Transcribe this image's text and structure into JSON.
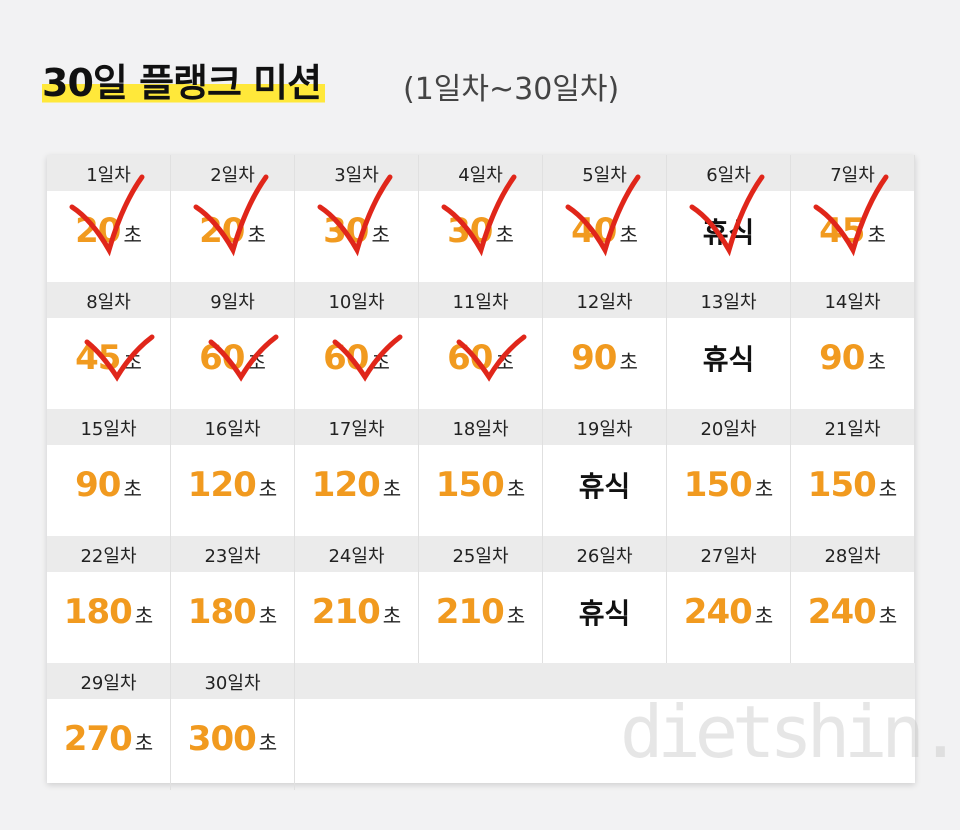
{
  "header": {
    "title": "30일 플랭크 미션",
    "subtitle": "(1일차~30일차)"
  },
  "unit": "초",
  "days": [
    {
      "label": "1일차",
      "value": 20
    },
    {
      "label": "2일차",
      "value": 20
    },
    {
      "label": "3일차",
      "value": 30
    },
    {
      "label": "4일차",
      "value": 30
    },
    {
      "label": "5일차",
      "value": 40
    },
    {
      "label": "6일차",
      "value": "휴식"
    },
    {
      "label": "7일차",
      "value": 45
    },
    {
      "label": "8일차",
      "value": 45
    },
    {
      "label": "9일차",
      "value": 60
    },
    {
      "label": "10일차",
      "value": 60
    },
    {
      "label": "11일차",
      "value": 60
    },
    {
      "label": "12일차",
      "value": 90
    },
    {
      "label": "13일차",
      "value": "휴식"
    },
    {
      "label": "14일차",
      "value": 90
    },
    {
      "label": "15일차",
      "value": 90
    },
    {
      "label": "16일차",
      "value": 120
    },
    {
      "label": "17일차",
      "value": 120
    },
    {
      "label": "18일차",
      "value": 150
    },
    {
      "label": "19일차",
      "value": "휴식"
    },
    {
      "label": "20일차",
      "value": 150
    },
    {
      "label": "21일차",
      "value": 150
    },
    {
      "label": "22일차",
      "value": 180
    },
    {
      "label": "23일차",
      "value": 180
    },
    {
      "label": "24일차",
      "value": 210
    },
    {
      "label": "25일차",
      "value": 210
    },
    {
      "label": "26일차",
      "value": "휴식"
    },
    {
      "label": "27일차",
      "value": 240
    },
    {
      "label": "28일차",
      "value": 240
    },
    {
      "label": "29일차",
      "value": 270
    },
    {
      "label": "30일차",
      "value": 300
    }
  ],
  "watermark": "dietshin.com"
}
